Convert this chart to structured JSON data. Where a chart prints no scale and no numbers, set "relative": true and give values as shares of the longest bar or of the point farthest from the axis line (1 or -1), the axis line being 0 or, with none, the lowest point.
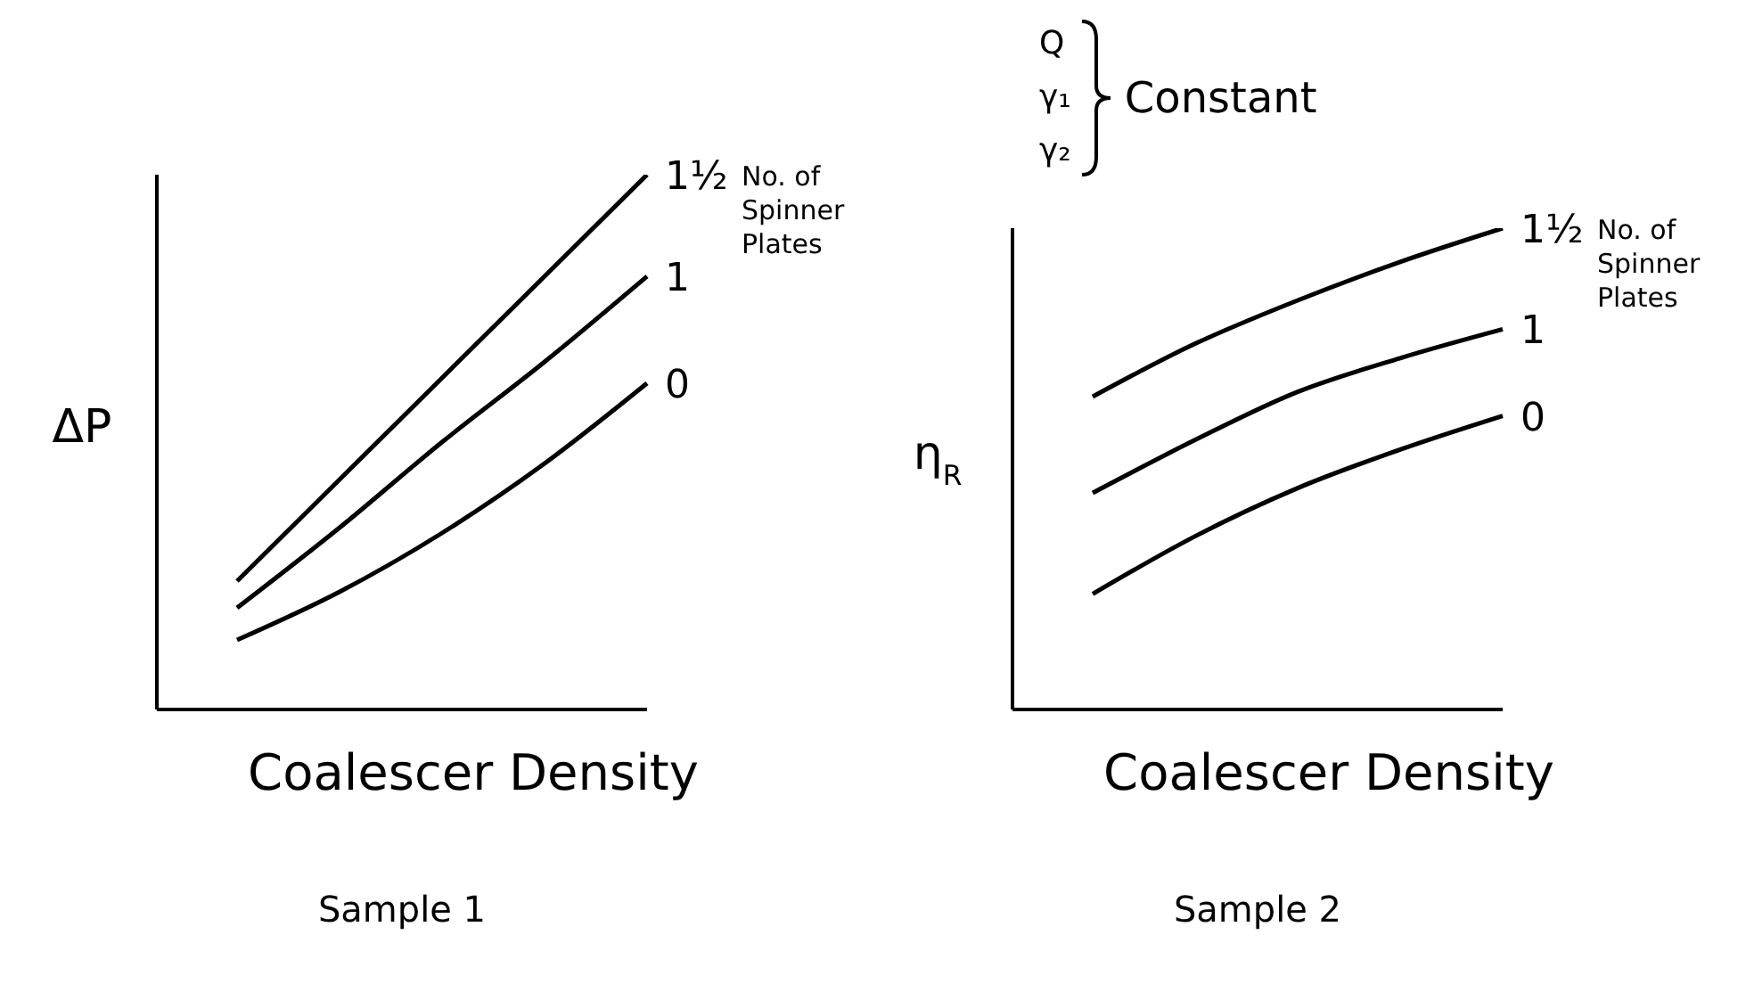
{
  "chart_data": [
    {
      "type": "line",
      "title": "Sample 1",
      "xlabel": "Coalescer Density",
      "ylabel": "ΔP",
      "legend_title": "No. of Spinner Plates",
      "relative": true,
      "categories": [
        null,
        null,
        null,
        null,
        null
      ],
      "series": [
        {
          "name": "1½",
          "color": "#000000",
          "values": [
            0.24,
            0.43,
            0.62,
            0.81,
            1.0
          ]
        },
        {
          "name": "1",
          "color": "#000000",
          "values": [
            0.19,
            0.34,
            0.5,
            0.65,
            0.81
          ]
        },
        {
          "name": "0",
          "color": "#000000",
          "values": [
            0.13,
            0.22,
            0.33,
            0.46,
            0.61
          ]
        }
      ]
    },
    {
      "type": "line",
      "title": "Sample 2",
      "xlabel": "Coalescer Density",
      "ylabel": "η$_{R}$",
      "legend_title": "No. of Spinner Plates",
      "relative": true,
      "categories": [
        null,
        null,
        null,
        null,
        null
      ],
      "annotations": [
        "Q",
        "γ₁",
        "γ₂",
        "Constant"
      ],
      "series": [
        {
          "name": "1½",
          "color": "#000000",
          "values": [
            0.65,
            0.76,
            0.85,
            0.93,
            1.0
          ]
        },
        {
          "name": "1",
          "color": "#000000",
          "values": [
            0.45,
            0.56,
            0.66,
            0.73,
            0.79
          ]
        },
        {
          "name": "0",
          "color": "#000000",
          "values": [
            0.24,
            0.36,
            0.46,
            0.54,
            0.61
          ]
        }
      ]
    }
  ]
}
